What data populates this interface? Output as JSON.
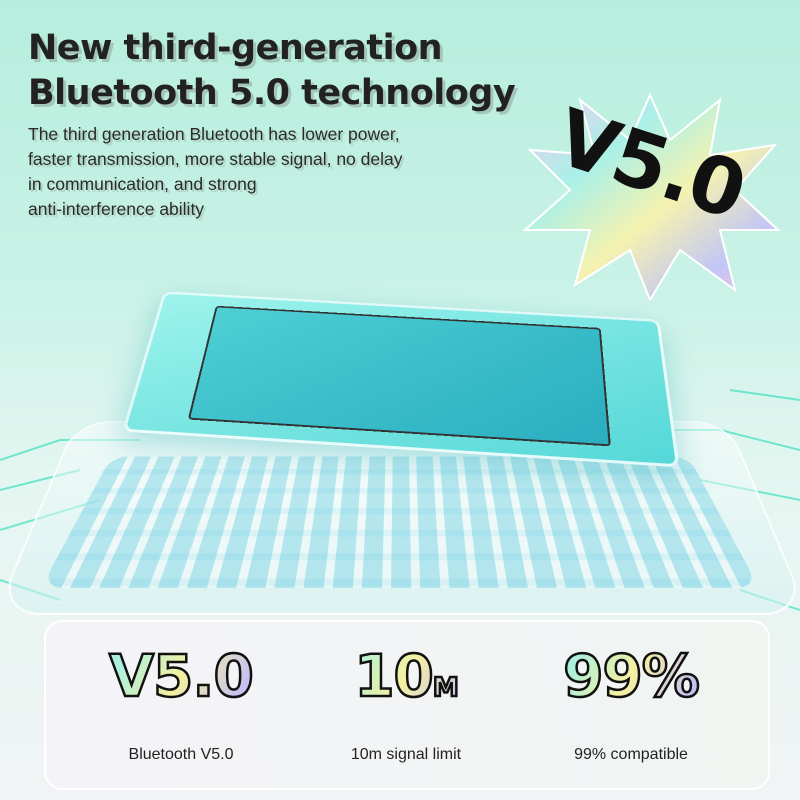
{
  "header": {
    "title_line1": "New third-generation",
    "title_line2": "Bluetooth 5.0 technology",
    "description_lines": [
      "The third generation Bluetooth has lower power,",
      "faster transmission, more stable signal, no delay",
      "in communication, and strong",
      "anti-interference ability"
    ]
  },
  "badge": {
    "text": "V5.0",
    "icon": "starburst-badge"
  },
  "stats": [
    {
      "value": "V5.0",
      "unit": "",
      "label": "Bluetooth V5.0"
    },
    {
      "value": "10",
      "unit": "M",
      "label": "10m signal limit"
    },
    {
      "value": "99%",
      "unit": "",
      "label": "99% compatible"
    }
  ],
  "colors": {
    "background": "#b6eedd",
    "chip": "#4fcfd5",
    "circuit": "#3fe0c0",
    "text": "#222222"
  }
}
